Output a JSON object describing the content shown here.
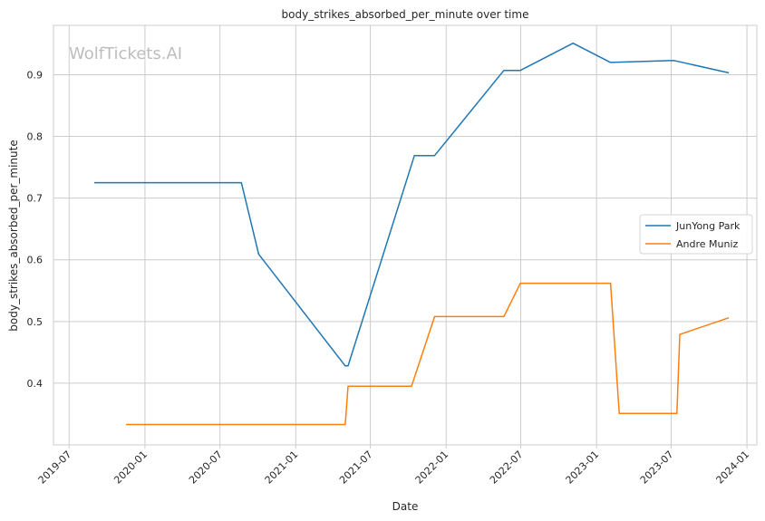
{
  "chart_data": {
    "type": "line",
    "title": "body_strikes_absorbed_per_minute over time",
    "xlabel": "Date",
    "ylabel": "body_strikes_absorbed_per_minute",
    "watermark": "WolfTickets.AI",
    "x_ticks": [
      "2019-07",
      "2020-01",
      "2020-07",
      "2021-01",
      "2021-07",
      "2022-01",
      "2022-07",
      "2023-01",
      "2023-07",
      "2024-01"
    ],
    "y_ticks": [
      "0.4",
      "0.5",
      "0.6",
      "0.7",
      "0.8",
      "0.9"
    ],
    "xlim": [
      "2019-05-24",
      "2024-01-25"
    ],
    "ylim": [
      0.3,
      0.98
    ],
    "grid": true,
    "legend_position": "center-right",
    "series": [
      {
        "name": "JunYong Park",
        "color": "#1f77b4",
        "points": [
          {
            "x": "2019-08-31",
            "y": 0.725
          },
          {
            "x": "2020-08-22",
            "y": 0.725
          },
          {
            "x": "2020-10-03",
            "y": 0.609
          },
          {
            "x": "2021-05-01",
            "y": 0.428
          },
          {
            "x": "2021-05-08",
            "y": 0.428
          },
          {
            "x": "2021-10-16",
            "y": 0.769
          },
          {
            "x": "2021-12-04",
            "y": 0.769
          },
          {
            "x": "2022-05-21",
            "y": 0.907
          },
          {
            "x": "2022-06-30",
            "y": 0.907
          },
          {
            "x": "2022-11-05",
            "y": 0.951
          },
          {
            "x": "2023-02-04",
            "y": 0.92
          },
          {
            "x": "2023-07-08",
            "y": 0.923
          },
          {
            "x": "2023-11-18",
            "y": 0.903
          }
        ]
      },
      {
        "name": "Andre Muniz",
        "color": "#ff7f0e",
        "points": [
          {
            "x": "2019-11-16",
            "y": 0.333
          },
          {
            "x": "2021-05-01",
            "y": 0.333
          },
          {
            "x": "2021-05-08",
            "y": 0.395
          },
          {
            "x": "2021-10-09",
            "y": 0.395
          },
          {
            "x": "2021-12-04",
            "y": 0.508
          },
          {
            "x": "2022-05-21",
            "y": 0.508
          },
          {
            "x": "2022-06-30",
            "y": 0.562
          },
          {
            "x": "2023-02-04",
            "y": 0.562
          },
          {
            "x": "2023-02-25",
            "y": 0.351
          },
          {
            "x": "2023-07-15",
            "y": 0.351
          },
          {
            "x": "2023-07-22",
            "y": 0.479
          },
          {
            "x": "2023-11-18",
            "y": 0.506
          }
        ]
      }
    ]
  }
}
